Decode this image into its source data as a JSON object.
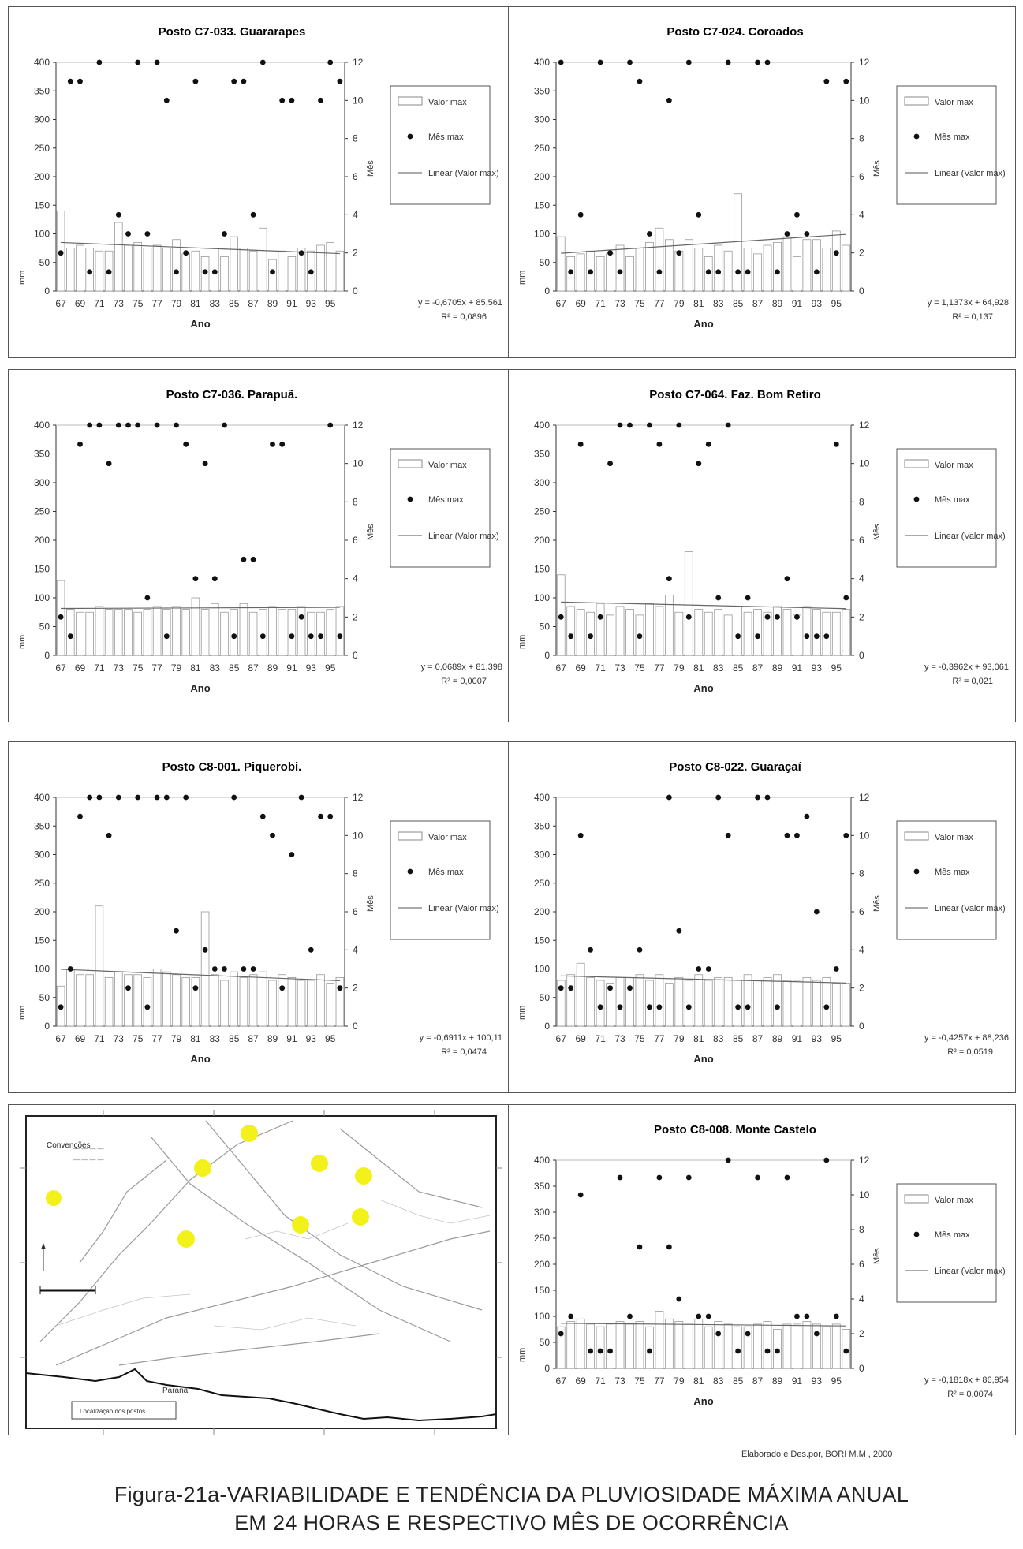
{
  "caption": {
    "credit": "Elaborado e Des.por, BORI M.M , 2000",
    "line1": "Figura-21a-VARIABILIDADE E TENDÊNCIA DA PLUVIOSIDADE MÁXIMA ANUAL",
    "line2": "EM 24 HORAS  E  RESPECTIVO MÊS DE OCORRÊNCIA"
  },
  "map": {
    "legend_title": "Convenções",
    "legend_item": "Localização dos postos",
    "river_label": "Paraná",
    "yellow": "#f2f21a"
  },
  "chart_data": [
    {
      "type": "bar+scatter",
      "title": "Posto C7-033. Guararapes",
      "xlabel": "Ano",
      "ylabel": "mm",
      "y2label": "Mês",
      "ylim": [
        0,
        400
      ],
      "y2lim": [
        0,
        12
      ],
      "ticks_x": [
        "67",
        "69",
        "71",
        "73",
        "75",
        "77",
        "79",
        "81",
        "83",
        "85",
        "87",
        "89",
        "91",
        "93",
        "95"
      ],
      "years": [
        67,
        68,
        69,
        70,
        71,
        72,
        73,
        74,
        75,
        76,
        77,
        78,
        79,
        80,
        81,
        82,
        83,
        84,
        85,
        86,
        87,
        88,
        89,
        90,
        91,
        92,
        93,
        94,
        95,
        96
      ],
      "values": [
        140,
        75,
        80,
        75,
        70,
        70,
        120,
        80,
        85,
        75,
        80,
        75,
        90,
        65,
        70,
        60,
        75,
        60,
        95,
        75,
        70,
        110,
        55,
        70,
        60,
        75,
        70,
        80,
        85,
        70
      ],
      "months": [
        2,
        11,
        11,
        1,
        12,
        1,
        4,
        3,
        12,
        3,
        12,
        10,
        1,
        2,
        11,
        1,
        1,
        3,
        11,
        11,
        4,
        12,
        1,
        10,
        10,
        2,
        1,
        10,
        12,
        11
      ],
      "legend": [
        "Valor max",
        "Mês max",
        "Linear (Valor max)"
      ],
      "equation": "y = -0,6705x + 85,561",
      "r2": "R² = 0,0896"
    },
    {
      "type": "bar+scatter",
      "title": "Posto C7-024. Coroados",
      "xlabel": "Ano",
      "ylabel": "mm",
      "y2label": "Mês",
      "ylim": [
        0,
        400
      ],
      "y2lim": [
        0,
        12
      ],
      "ticks_x": [
        "67",
        "69",
        "71",
        "73",
        "75",
        "77",
        "79",
        "81",
        "83",
        "85",
        "87",
        "89",
        "91",
        "93",
        "95"
      ],
      "years": [
        67,
        68,
        69,
        70,
        71,
        72,
        73,
        74,
        75,
        76,
        77,
        78,
        79,
        80,
        81,
        82,
        83,
        84,
        85,
        86,
        87,
        88,
        89,
        90,
        91,
        92,
        93,
        94,
        95,
        96
      ],
      "values": [
        95,
        60,
        65,
        70,
        60,
        65,
        80,
        60,
        75,
        85,
        110,
        90,
        70,
        90,
        75,
        60,
        80,
        70,
        170,
        75,
        65,
        80,
        85,
        95,
        60,
        90,
        90,
        75,
        105,
        80
      ],
      "months": [
        12,
        1,
        4,
        1,
        12,
        2,
        1,
        12,
        11,
        3,
        1,
        10,
        2,
        12,
        4,
        1,
        1,
        12,
        1,
        1,
        12,
        12,
        1,
        3,
        4,
        3,
        1,
        11,
        2,
        11
      ],
      "legend": [
        "Valor max",
        "Mês max",
        "Linear (Valor max)"
      ],
      "equation": "y = 1,1373x + 64,928",
      "r2": "R² = 0,137"
    },
    {
      "type": "bar+scatter",
      "title": "Posto C7-036. Parapuã.",
      "xlabel": "Ano",
      "ylabel": "mm",
      "y2label": "Mês",
      "ylim": [
        0,
        400
      ],
      "y2lim": [
        0,
        12
      ],
      "ticks_x": [
        "67",
        "69",
        "71",
        "73",
        "75",
        "77",
        "79",
        "81",
        "83",
        "85",
        "87",
        "89",
        "91",
        "93",
        "95"
      ],
      "years": [
        67,
        68,
        69,
        70,
        71,
        72,
        73,
        74,
        75,
        76,
        77,
        78,
        79,
        80,
        81,
        82,
        83,
        84,
        85,
        86,
        87,
        88,
        89,
        90,
        91,
        92,
        93,
        94,
        95,
        96
      ],
      "values": [
        130,
        80,
        75,
        75,
        85,
        80,
        80,
        80,
        75,
        80,
        85,
        80,
        85,
        80,
        100,
        80,
        90,
        75,
        80,
        90,
        75,
        80,
        85,
        80,
        80,
        85,
        75,
        75,
        80,
        85
      ],
      "months": [
        2,
        1,
        11,
        12,
        12,
        10,
        12,
        12,
        12,
        3,
        12,
        1,
        12,
        11,
        4,
        10,
        4,
        12,
        1,
        5,
        5,
        1,
        11,
        11,
        1,
        2,
        1,
        1,
        12,
        1
      ],
      "legend": [
        "Valor max",
        "Mês max",
        "Linear (Valor max)"
      ],
      "equation": "y = 0,0689x + 81,398",
      "r2": "R² = 0,0007"
    },
    {
      "type": "bar+scatter",
      "title": "Posto C7-064. Faz. Bom Retiro",
      "xlabel": "Ano",
      "ylabel": "mm",
      "y2label": "Mês",
      "ylim": [
        0,
        400
      ],
      "y2lim": [
        0,
        12
      ],
      "ticks_x": [
        "67",
        "69",
        "71",
        "73",
        "75",
        "77",
        "79",
        "81",
        "83",
        "85",
        "87",
        "89",
        "91",
        "93",
        "95"
      ],
      "years": [
        67,
        68,
        69,
        70,
        71,
        72,
        73,
        74,
        75,
        76,
        77,
        78,
        79,
        80,
        81,
        82,
        83,
        84,
        85,
        86,
        87,
        88,
        89,
        90,
        91,
        92,
        93,
        94,
        95,
        96
      ],
      "values": [
        140,
        85,
        80,
        75,
        90,
        70,
        85,
        80,
        70,
        90,
        85,
        105,
        75,
        180,
        80,
        75,
        80,
        70,
        85,
        75,
        80,
        75,
        85,
        80,
        70,
        85,
        80,
        75,
        75,
        80
      ],
      "months": [
        2,
        1,
        11,
        1,
        2,
        10,
        12,
        12,
        1,
        12,
        11,
        4,
        12,
        2,
        10,
        11,
        3,
        12,
        1,
        3,
        1,
        2,
        2,
        4,
        2,
        1,
        1,
        1,
        11,
        3
      ],
      "legend": [
        "Valor max",
        "Mês max",
        "Linear (Valor max)"
      ],
      "equation": "y = -0,3962x + 93,061",
      "r2": "R² = 0,021"
    },
    {
      "type": "bar+scatter",
      "title": "Posto C8-001. Piquerobi.",
      "xlabel": "Ano",
      "ylabel": "mm",
      "y2label": "Mês",
      "ylim": [
        0,
        400
      ],
      "y2lim": [
        0,
        12
      ],
      "ticks_x": [
        "67",
        "69",
        "71",
        "73",
        "75",
        "77",
        "79",
        "81",
        "83",
        "85",
        "87",
        "89",
        "91",
        "93",
        "95"
      ],
      "years": [
        67,
        68,
        69,
        70,
        71,
        72,
        73,
        74,
        75,
        76,
        77,
        78,
        79,
        80,
        81,
        82,
        83,
        84,
        85,
        86,
        87,
        88,
        89,
        90,
        91,
        92,
        93,
        94,
        95,
        96
      ],
      "values": [
        70,
        100,
        90,
        90,
        210,
        85,
        95,
        90,
        90,
        85,
        100,
        95,
        90,
        85,
        85,
        200,
        90,
        80,
        95,
        85,
        90,
        95,
        80,
        90,
        85,
        80,
        80,
        90,
        75,
        85
      ],
      "months": [
        1,
        3,
        11,
        12,
        12,
        10,
        12,
        2,
        12,
        1,
        12,
        12,
        5,
        12,
        2,
        4,
        3,
        3,
        12,
        3,
        3,
        11,
        10,
        2,
        9,
        12,
        4,
        11,
        11,
        2
      ],
      "legend": [
        "Valor max",
        "Mês max",
        "Linear (Valor max)"
      ],
      "equation": "y = -0,6911x + 100,11",
      "r2": "R² = 0,0474"
    },
    {
      "type": "bar+scatter",
      "title": "Posto C8-022. Guaraçaí",
      "xlabel": "Ano",
      "ylabel": "mm",
      "y2label": "Mês",
      "ylim": [
        0,
        400
      ],
      "y2lim": [
        0,
        12
      ],
      "ticks_x": [
        "67",
        "69",
        "71",
        "73",
        "75",
        "77",
        "79",
        "81",
        "83",
        "85",
        "87",
        "89",
        "91",
        "93",
        "95"
      ],
      "years": [
        67,
        68,
        69,
        70,
        71,
        72,
        73,
        74,
        75,
        76,
        77,
        78,
        79,
        80,
        81,
        82,
        83,
        84,
        85,
        86,
        87,
        88,
        89,
        90,
        91,
        92,
        93,
        94,
        95,
        96
      ],
      "values": [
        80,
        90,
        110,
        85,
        80,
        75,
        85,
        85,
        90,
        80,
        90,
        75,
        85,
        80,
        90,
        80,
        85,
        85,
        80,
        90,
        80,
        85,
        90,
        80,
        80,
        85,
        80,
        85,
        75,
        75
      ],
      "months": [
        2,
        2,
        10,
        4,
        1,
        2,
        1,
        2,
        4,
        1,
        1,
        12,
        5,
        1,
        3,
        3,
        12,
        10,
        1,
        1,
        12,
        12,
        1,
        10,
        10,
        11,
        6,
        1,
        3,
        10
      ],
      "legend": [
        "Valor max",
        "Mês max",
        "Linear (Valor max)"
      ],
      "equation": "y = -0,4257x + 88,236",
      "r2": "R² = 0,0519"
    },
    {
      "type": "bar+scatter",
      "title": "Posto C8-008. Monte Castelo",
      "xlabel": "Ano",
      "ylabel": "mm",
      "y2label": "Mês",
      "ylim": [
        0,
        400
      ],
      "y2lim": [
        0,
        12
      ],
      "ticks_x": [
        "67",
        "69",
        "71",
        "73",
        "75",
        "77",
        "79",
        "81",
        "83",
        "85",
        "87",
        "89",
        "91",
        "93",
        "95"
      ],
      "years": [
        67,
        68,
        69,
        70,
        71,
        72,
        73,
        74,
        75,
        76,
        77,
        78,
        79,
        80,
        81,
        82,
        83,
        84,
        85,
        86,
        87,
        88,
        89,
        90,
        91,
        92,
        93,
        94,
        95,
        96
      ],
      "values": [
        80,
        90,
        95,
        85,
        80,
        85,
        90,
        85,
        90,
        80,
        110,
        95,
        90,
        85,
        95,
        80,
        90,
        85,
        80,
        80,
        85,
        90,
        75,
        85,
        85,
        90,
        85,
        80,
        85,
        75
      ],
      "months": [
        2,
        3,
        10,
        1,
        1,
        1,
        11,
        3,
        7,
        1,
        11,
        7,
        4,
        11,
        3,
        3,
        2,
        12,
        1,
        2,
        11,
        1,
        1,
        11,
        3,
        3,
        2,
        12,
        3,
        1
      ],
      "legend": [
        "Valor max",
        "Mês max",
        "Linear (Valor max)"
      ],
      "equation": "y = -0,1818x + 86,954",
      "r2": "R² = 0,0074"
    }
  ]
}
